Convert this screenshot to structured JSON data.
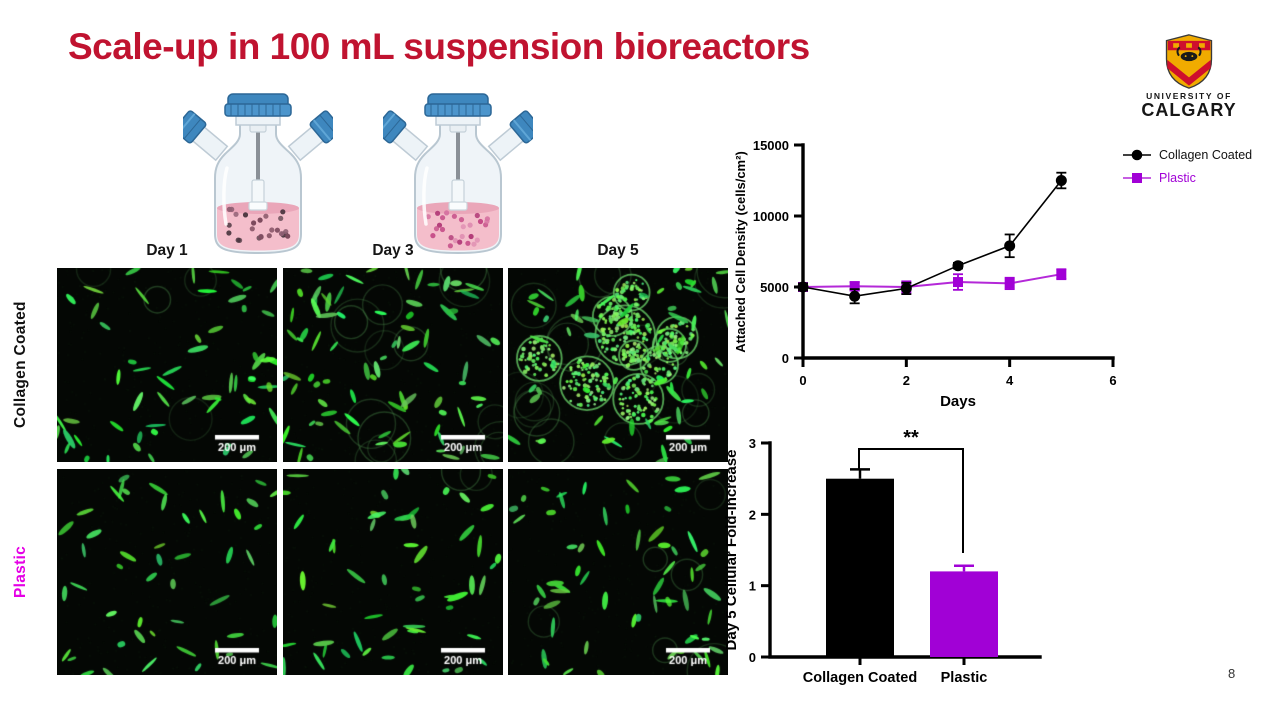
{
  "slide": {
    "title": "Scale-up in 100 mL suspension bioreactors",
    "page_number": "8"
  },
  "logo": {
    "line1": "UNIVERSITY OF",
    "line2": "CALGARY"
  },
  "decor": {
    "title_color": "#C01330",
    "flask_cap_blue": "#3E87BE",
    "flask_liquid_pink": "#F4BECB",
    "flask_dot_colors": [
      [
        "#5f4650",
        "#7c4a5c",
        "#46333c",
        "#8f5f73"
      ],
      [
        "#c44985",
        "#d673a1",
        "#b23a78",
        "#e08fb2"
      ]
    ],
    "micrograph_green": "#3ddb3d"
  },
  "micrographs": {
    "column_headers": [
      "Day 1",
      "Day 3",
      "Day 5"
    ],
    "row_labels": [
      {
        "label": "Collagen Coated",
        "color": "#111111"
      },
      {
        "label": "Plastic",
        "color": "#E500E5"
      }
    ],
    "scale_bar_label": "200 μm",
    "panels": [
      {
        "row": "Collagen Coated",
        "day": "Day 1",
        "seed": 11,
        "cells": 60,
        "rings": 4,
        "spheres": 0
      },
      {
        "row": "Collagen Coated",
        "day": "Day 3",
        "seed": 23,
        "cells": 82,
        "rings": 14,
        "spheres": 0
      },
      {
        "row": "Collagen Coated",
        "day": "Day 5",
        "seed": 37,
        "cells": 70,
        "rings": 18,
        "spheres": 10
      },
      {
        "row": "Plastic",
        "day": "Day 1",
        "seed": 41,
        "cells": 48,
        "rings": 0,
        "spheres": 0
      },
      {
        "row": "Plastic",
        "day": "Day 3",
        "seed": 53,
        "cells": 55,
        "rings": 2,
        "spheres": 0
      },
      {
        "row": "Plastic",
        "day": "Day 5",
        "seed": 67,
        "cells": 60,
        "rings": 6,
        "spheres": 0
      }
    ]
  },
  "chart_data": [
    {
      "type": "line",
      "title": "",
      "xlabel": "Days",
      "ylabel": "Attached Cell Density (cells/cm²)",
      "xlim": [
        0,
        6
      ],
      "ylim": [
        0,
        15000
      ],
      "xticks": [
        0,
        2,
        4,
        6
      ],
      "yticks": [
        0,
        5000,
        10000,
        15000
      ],
      "x": [
        0,
        1,
        2,
        3,
        4,
        5
      ],
      "legend_position": "right",
      "grid": false,
      "series": [
        {
          "name": "Collagen Coated",
          "marker": "circle",
          "color": "#000000",
          "line_color": "#000000",
          "values": [
            5000,
            4350,
            4900,
            6500,
            7900,
            12500
          ],
          "errors": [
            250,
            500,
            400,
            200,
            800,
            550
          ]
        },
        {
          "name": "Plastic",
          "marker": "square",
          "color": "#A101D6",
          "line_color": "#B428D8",
          "values": [
            5000,
            5050,
            5000,
            5350,
            5250,
            5900
          ],
          "errors": [
            200,
            300,
            400,
            550,
            400,
            350
          ]
        }
      ]
    },
    {
      "type": "bar",
      "title": "",
      "xlabel": "",
      "ylabel": "Day 5 Cellular  Fold-Increase",
      "ylim": [
        0,
        3
      ],
      "yticks": [
        0,
        1,
        2,
        3
      ],
      "categories": [
        "Collagen Coated",
        "Plastic"
      ],
      "values": [
        2.5,
        1.2
      ],
      "errors": [
        0.13,
        0.08
      ],
      "bar_colors": [
        "#000000",
        "#A101D6"
      ],
      "significance": "**"
    }
  ]
}
